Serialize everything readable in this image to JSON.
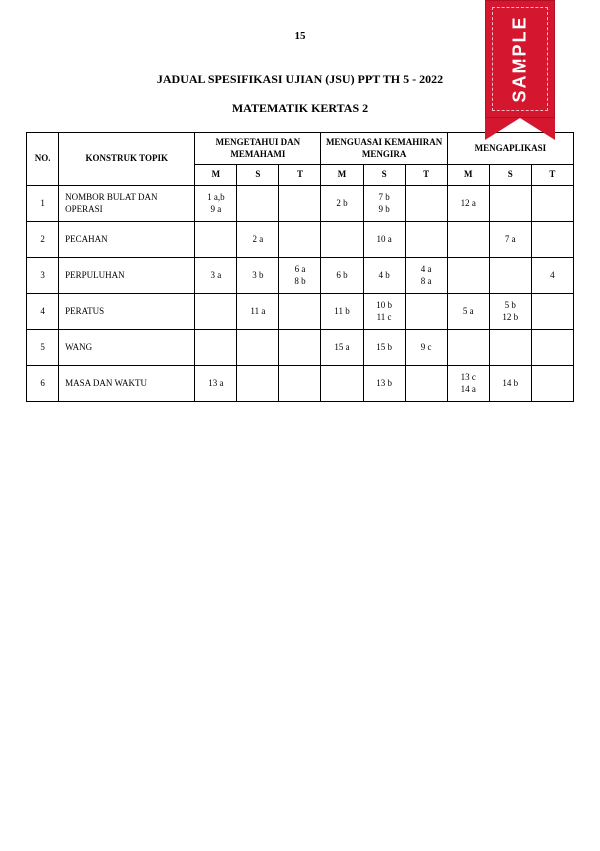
{
  "page_number": "15",
  "title": "JADUAL SPESIFIKASI UJIAN (JSU) PPT TH 5 - 2022",
  "subtitle": "MATEMATIK KERTAS 2",
  "ribbon": {
    "text": "SAMPLE"
  },
  "table": {
    "headers": {
      "no": "NO.",
      "topic": "KONSTRUK TOPIK",
      "group1": "MENGETAHUI DAN MEMAHAMI",
      "group2": "MENGUASAI KEMAHIRAN MENGIRA",
      "group3": "MENGAPLIKASI",
      "sub": [
        "M",
        "S",
        "T",
        "M",
        "S",
        "T",
        "M",
        "S",
        "T"
      ]
    },
    "rows": [
      {
        "no": "1",
        "topic": "NOMBOR BULAT DAN OPERASI",
        "cells": [
          "1 a,b\n9 a",
          "",
          "",
          "2 b",
          "7 b\n9 b",
          "",
          "12 a",
          "",
          ""
        ]
      },
      {
        "no": "2",
        "topic": "PECAHAN",
        "cells": [
          "",
          "2 a",
          "",
          "",
          "10 a",
          "",
          "",
          "7 a",
          ""
        ]
      },
      {
        "no": "3",
        "topic": "PERPULUHAN",
        "cells": [
          "3 a",
          "3 b",
          "6 a\n8 b",
          "6 b",
          "4 b",
          "4 a\n8 a",
          "",
          "",
          "4"
        ]
      },
      {
        "no": "4",
        "topic": "PERATUS",
        "cells": [
          "",
          "11 a",
          "",
          "11 b",
          "10 b\n11 c",
          "",
          "5 a",
          "5 b\n12 b",
          ""
        ]
      },
      {
        "no": "5",
        "topic": "WANG",
        "cells": [
          "",
          "",
          "",
          "15 a",
          "15 b",
          "9 c",
          "",
          "",
          ""
        ]
      },
      {
        "no": "6",
        "topic": "MASA DAN WAKTU",
        "cells": [
          "13 a",
          "",
          "",
          "",
          "13 b",
          "",
          "13 c\n14 a",
          "14 b",
          ""
        ]
      }
    ]
  }
}
